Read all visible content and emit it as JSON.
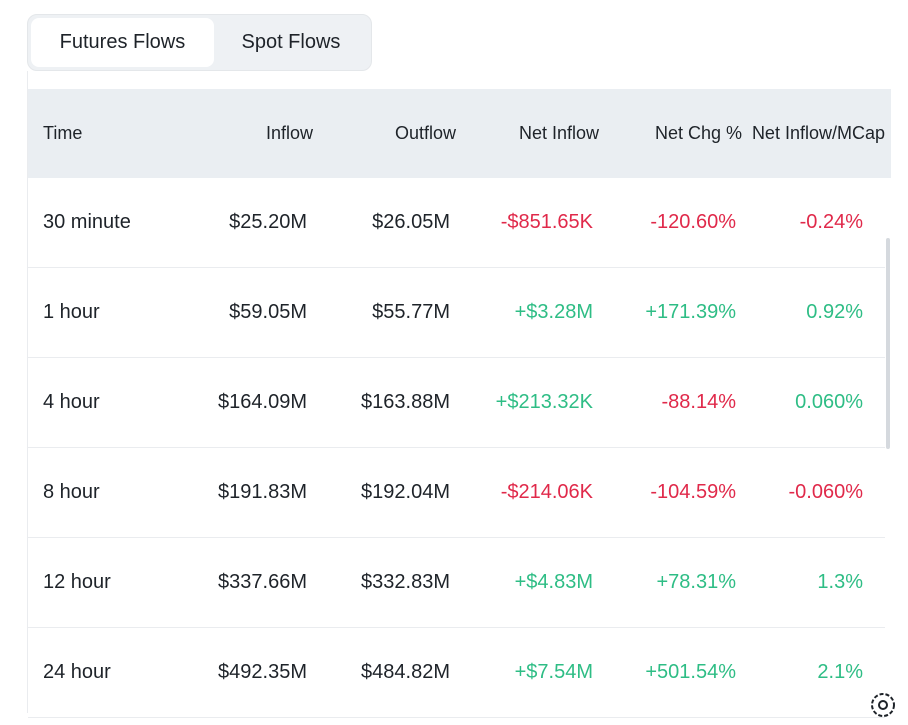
{
  "tabs": [
    {
      "label": "Futures Flows",
      "active": true
    },
    {
      "label": "Spot Flows",
      "active": false
    }
  ],
  "table": {
    "headers": {
      "time": "Time",
      "inflow": "Inflow",
      "outflow": "Outflow",
      "net_inflow": "Net Inflow",
      "net_chg": "Net Chg %",
      "net_inflow_mcap": "Net Inflow/MCap"
    },
    "rows": [
      {
        "time": "30 minute",
        "inflow": "$25.20M",
        "outflow": "$26.05M",
        "net_inflow": "-$851.65K",
        "net_chg": "-120.60%",
        "mcap": "-0.24%"
      },
      {
        "time": "1 hour",
        "inflow": "$59.05M",
        "outflow": "$55.77M",
        "net_inflow": "+$3.28M",
        "net_chg": "+171.39%",
        "mcap": "0.92%"
      },
      {
        "time": "4 hour",
        "inflow": "$164.09M",
        "outflow": "$163.88M",
        "net_inflow": "+$213.32K",
        "net_chg": "-88.14%",
        "mcap": "0.060%"
      },
      {
        "time": "8 hour",
        "inflow": "$191.83M",
        "outflow": "$192.04M",
        "net_inflow": "-$214.06K",
        "net_chg": "-104.59%",
        "mcap": "-0.060%"
      },
      {
        "time": "12 hour",
        "inflow": "$337.66M",
        "outflow": "$332.83M",
        "net_inflow": "+$4.83M",
        "net_chg": "+78.31%",
        "mcap": "1.3%"
      },
      {
        "time": "24 hour",
        "inflow": "$492.35M",
        "outflow": "$484.82M",
        "net_inflow": "+$7.54M",
        "net_chg": "+501.54%",
        "mcap": "2.1%"
      }
    ]
  },
  "colors": {
    "positive": "#2ebd85",
    "negative": "#e0294a",
    "header_bg": "#eaeef2"
  },
  "icons": {
    "settings": "gear-icon"
  }
}
